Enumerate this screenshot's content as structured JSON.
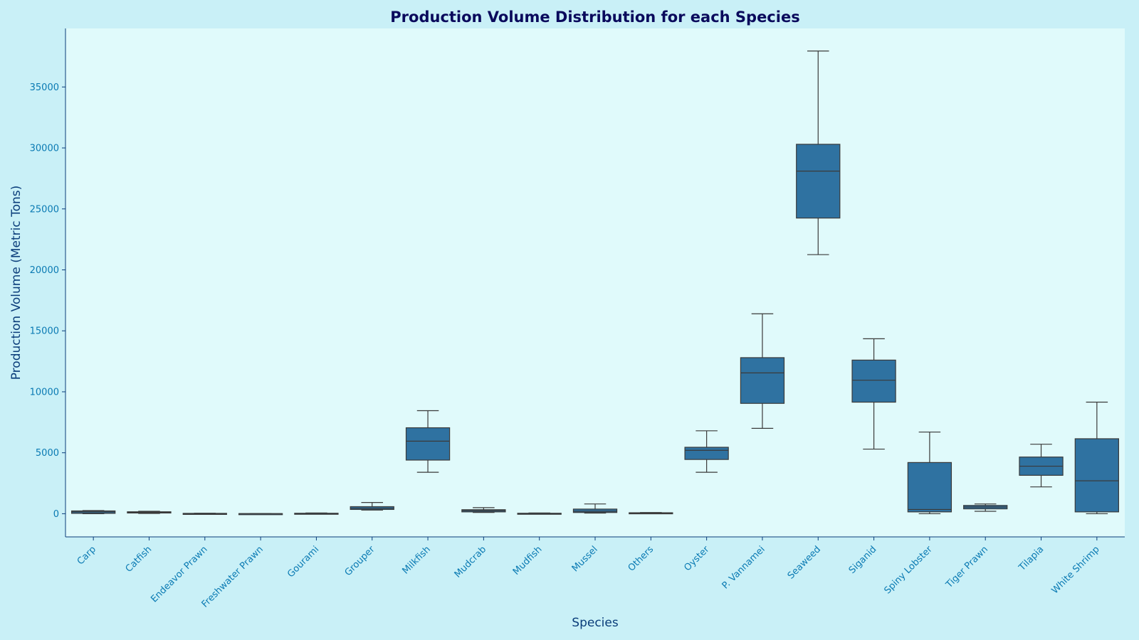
{
  "colors": {
    "figure_bg": "#c9f0f7",
    "plot_bg": "#e0fafb",
    "box_fill": "#2f72a1",
    "box_stroke": "#3a3a3a",
    "title": "#0a0a5c",
    "axis_label": "#0a3d7a",
    "tick_label": "#0a7ab3",
    "spine": "#0a3d7a"
  },
  "chart_data": {
    "type": "box",
    "title": "Production Volume Distribution for each Species",
    "xlabel": "Species",
    "ylabel": "Production Volume (Metric Tons)",
    "ylim": [
      -1900,
      39800
    ],
    "yticks": [
      0,
      5000,
      10000,
      15000,
      20000,
      25000,
      30000,
      35000
    ],
    "grid": false,
    "categories": [
      "Carp",
      "Catfish",
      "Endeavor Prawn",
      "Freshwater Prawn",
      "Gourami",
      "Grouper",
      "Milkfish",
      "Mudcrab",
      "Mudfish",
      "Mussel",
      "Others",
      "Oyster",
      "P. Vannamei",
      "Seaweed",
      "Siganid",
      "Spiny Lobster",
      "Tiger Prawn",
      "Tilapia",
      "White Shrimp"
    ],
    "boxes": [
      {
        "species": "Carp",
        "min": 0,
        "q1": 30,
        "median": 150,
        "q3": 230,
        "max": 260
      },
      {
        "species": "Catfish",
        "min": 20,
        "q1": 60,
        "median": 110,
        "q3": 160,
        "max": 200
      },
      {
        "species": "Endeavor Prawn",
        "min": 0,
        "q1": 0,
        "median": 10,
        "q3": 30,
        "max": 40
      },
      {
        "species": "Freshwater Prawn",
        "min": 0,
        "q1": 0,
        "median": 5,
        "q3": 10,
        "max": 20
      },
      {
        "species": "Gourami",
        "min": 0,
        "q1": 10,
        "median": 20,
        "q3": 40,
        "max": 60
      },
      {
        "species": "Grouper",
        "min": 300,
        "q1": 350,
        "median": 450,
        "q3": 580,
        "max": 920
      },
      {
        "species": "Milkfish",
        "min": 3400,
        "q1": 4400,
        "median": 5950,
        "q3": 7050,
        "max": 8450
      },
      {
        "species": "Mudcrab",
        "min": 100,
        "q1": 150,
        "median": 250,
        "q3": 330,
        "max": 500
      },
      {
        "species": "Mudfish",
        "min": 0,
        "q1": 10,
        "median": 20,
        "q3": 40,
        "max": 60
      },
      {
        "species": "Mussel",
        "min": 50,
        "q1": 100,
        "median": 200,
        "q3": 380,
        "max": 800
      },
      {
        "species": "Others",
        "min": 0,
        "q1": 20,
        "median": 50,
        "q3": 80,
        "max": 100
      },
      {
        "species": "Oyster",
        "min": 3400,
        "q1": 4450,
        "median": 5200,
        "q3": 5450,
        "max": 6800
      },
      {
        "species": "P. Vannamei",
        "min": 7000,
        "q1": 9050,
        "median": 11550,
        "q3": 12800,
        "max": 16400
      },
      {
        "species": "Seaweed",
        "min": 21250,
        "q1": 24250,
        "median": 28100,
        "q3": 30300,
        "max": 37950
      },
      {
        "species": "Siganid",
        "min": 5300,
        "q1": 9150,
        "median": 10950,
        "q3": 12600,
        "max": 14350
      },
      {
        "species": "Spiny Lobster",
        "min": 0,
        "q1": 150,
        "median": 350,
        "q3": 4200,
        "max": 6700
      },
      {
        "species": "Tiger Prawn",
        "min": 200,
        "q1": 400,
        "median": 550,
        "q3": 680,
        "max": 800
      },
      {
        "species": "Tilapia",
        "min": 2200,
        "q1": 3150,
        "median": 3900,
        "q3": 4650,
        "max": 5700
      },
      {
        "species": "White Shrimp",
        "min": 0,
        "q1": 150,
        "median": 2700,
        "q3": 6150,
        "max": 9150
      }
    ]
  }
}
